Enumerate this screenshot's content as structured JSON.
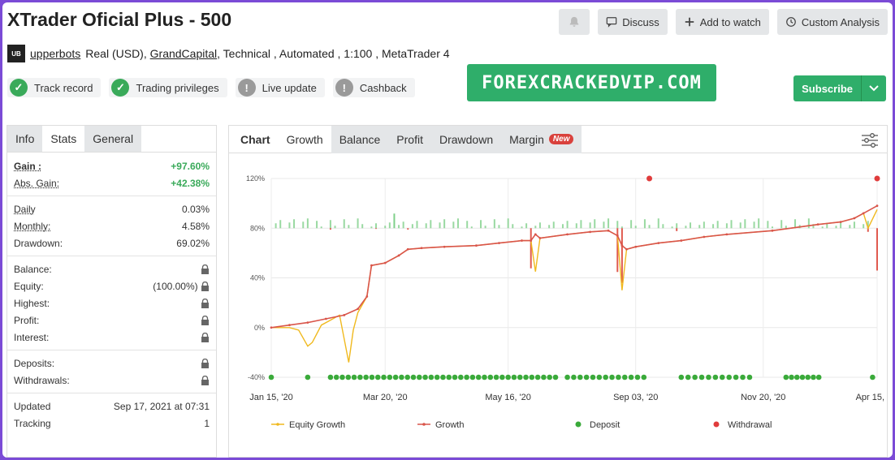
{
  "title": "XTrader Oficial Plus - 500",
  "buttons": {
    "bell": "bell-icon",
    "discuss": "Discuss",
    "add_to_watch": "Add to watch",
    "custom_analysis": "Custom Analysis"
  },
  "meta": {
    "owner": "upperbots",
    "account": "Real (USD), ",
    "broker": "GrandCapital",
    "rest": ", Technical , Automated , 1:100 , MetaTrader 4"
  },
  "badges": [
    "Track record",
    "Trading privileges",
    "Live update",
    "Cashback"
  ],
  "promo": "FOREXCRACKEDVIP.COM",
  "subscribe": "Subscribe",
  "left_tabs": [
    "Info",
    "Stats",
    "General"
  ],
  "stats": {
    "gain_label": "Gain :",
    "gain": "+97.60%",
    "abs_gain_label": "Abs. Gain:",
    "abs_gain": "+42.38%",
    "daily_label": "Daily",
    "daily": "0.03%",
    "monthly_label": "Monthly:",
    "monthly": "4.58%",
    "drawdown_label": "Drawdown:",
    "drawdown": "69.02%",
    "balance_label": "Balance:",
    "equity_label": "Equity:",
    "equity": "(100.00%)",
    "highest_label": "Highest:",
    "profit_label": "Profit:",
    "interest_label": "Interest:",
    "deposits_label": "Deposits:",
    "withdrawals_label": "Withdrawals:",
    "updated_label": "Updated",
    "updated": "Sep 17, 2021 at 07:31",
    "tracking_label": "Tracking",
    "tracking": "1"
  },
  "chart_tabs": [
    "Chart",
    "Growth",
    "Balance",
    "Profit",
    "Drawdown",
    "Margin"
  ],
  "new_badge": "New",
  "chart_data": {
    "type": "line",
    "y_ticks": [
      "120%",
      "80%",
      "40%",
      "0%",
      "-40%"
    ],
    "x_ticks": [
      "Jan 15, '20",
      "Mar 20, '20",
      "May 16, '20",
      "Sep 03, '20",
      "Nov 20, '20",
      "Apr 15, '21"
    ],
    "ylim": [
      -40,
      120
    ],
    "series": [
      {
        "name": "Equity Growth",
        "color": "#f0b91e",
        "points": [
          [
            0,
            0
          ],
          [
            4,
            0
          ],
          [
            6,
            -2
          ],
          [
            8,
            -15
          ],
          [
            9,
            -12
          ],
          [
            11,
            2
          ],
          [
            13,
            6
          ],
          [
            15,
            10
          ],
          [
            17,
            -28
          ],
          [
            18,
            -2
          ],
          [
            19,
            12
          ],
          [
            21,
            25
          ],
          [
            22,
            50
          ],
          [
            25,
            52
          ],
          [
            28,
            58
          ],
          [
            30,
            63
          ],
          [
            33,
            64
          ],
          [
            38,
            65
          ],
          [
            45,
            66
          ],
          [
            50,
            68
          ],
          [
            55,
            70
          ],
          [
            57,
            70
          ],
          [
            58,
            45
          ],
          [
            59,
            72
          ],
          [
            65,
            75
          ],
          [
            70,
            77
          ],
          [
            74,
            78
          ],
          [
            76,
            74
          ],
          [
            77,
            30
          ],
          [
            78,
            63
          ],
          [
            80,
            65
          ],
          [
            85,
            68
          ],
          [
            90,
            70
          ],
          [
            95,
            73
          ],
          [
            100,
            75
          ],
          [
            110,
            78
          ],
          [
            120,
            83
          ],
          [
            125,
            85
          ],
          [
            128,
            88
          ],
          [
            130,
            92
          ],
          [
            131,
            80
          ],
          [
            133,
            95
          ]
        ]
      },
      {
        "name": "Growth",
        "color": "#d9554a",
        "points": [
          [
            0,
            0
          ],
          [
            4,
            2
          ],
          [
            8,
            4
          ],
          [
            12,
            7
          ],
          [
            16,
            10
          ],
          [
            19,
            15
          ],
          [
            21,
            25
          ],
          [
            22,
            50
          ],
          [
            25,
            52
          ],
          [
            28,
            58
          ],
          [
            30,
            63
          ],
          [
            33,
            64
          ],
          [
            38,
            65
          ],
          [
            45,
            66
          ],
          [
            50,
            68
          ],
          [
            55,
            70
          ],
          [
            57,
            70
          ],
          [
            58,
            75
          ],
          [
            59,
            72
          ],
          [
            65,
            75
          ],
          [
            70,
            77
          ],
          [
            74,
            78
          ],
          [
            76,
            74
          ],
          [
            77,
            66
          ],
          [
            78,
            63
          ],
          [
            80,
            65
          ],
          [
            85,
            68
          ],
          [
            90,
            70
          ],
          [
            95,
            73
          ],
          [
            100,
            75
          ],
          [
            110,
            78
          ],
          [
            120,
            83
          ],
          [
            125,
            85
          ],
          [
            128,
            88
          ],
          [
            130,
            92
          ],
          [
            133,
            98
          ]
        ]
      }
    ],
    "legend": [
      "Equity Growth",
      "Growth",
      "Deposit",
      "Withdrawal"
    ],
    "legend_colors": [
      "#f0b91e",
      "#d9554a",
      "#3aaa3a",
      "#e03c3c"
    ],
    "bar_colors": {
      "up": "#7fd08a",
      "down": "#e05a4f"
    },
    "deposit_color": "#3aaa3a",
    "withdrawal_color": "#e03c3c"
  }
}
